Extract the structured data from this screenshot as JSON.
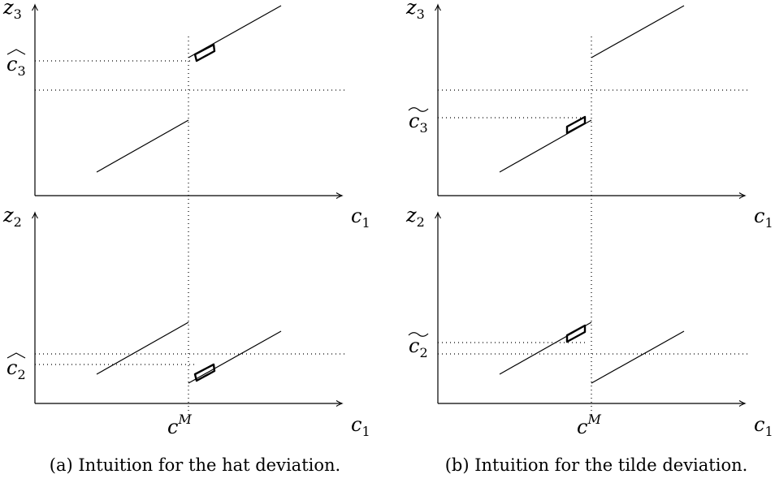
{
  "figure": {
    "panel_a": {
      "caption": "(a) Intuition for the hat deviation.",
      "top": {
        "y_label": "z",
        "y_sub": "3",
        "level_label": "c",
        "level_sub": "3",
        "level_accent": "hat",
        "x_label": "c",
        "x_sub": "1"
      },
      "bottom": {
        "y_label": "z",
        "y_sub": "2",
        "level_label": "c",
        "level_sub": "2",
        "level_accent": "hat",
        "x_label": "c",
        "x_sub": "1",
        "marker_label": "c",
        "marker_sup": "M"
      }
    },
    "panel_b": {
      "caption": "(b) Intuition for the tilde deviation.",
      "top": {
        "y_label": "z",
        "y_sub": "3",
        "level_label": "c",
        "level_sub": "3",
        "level_accent": "tilde",
        "x_label": "c",
        "x_sub": "1"
      },
      "bottom": {
        "y_label": "z",
        "y_sub": "2",
        "level_label": "c",
        "level_sub": "2",
        "level_accent": "tilde",
        "x_label": "c",
        "x_sub": "1",
        "marker_label": "c",
        "marker_sup": "M"
      }
    }
  }
}
